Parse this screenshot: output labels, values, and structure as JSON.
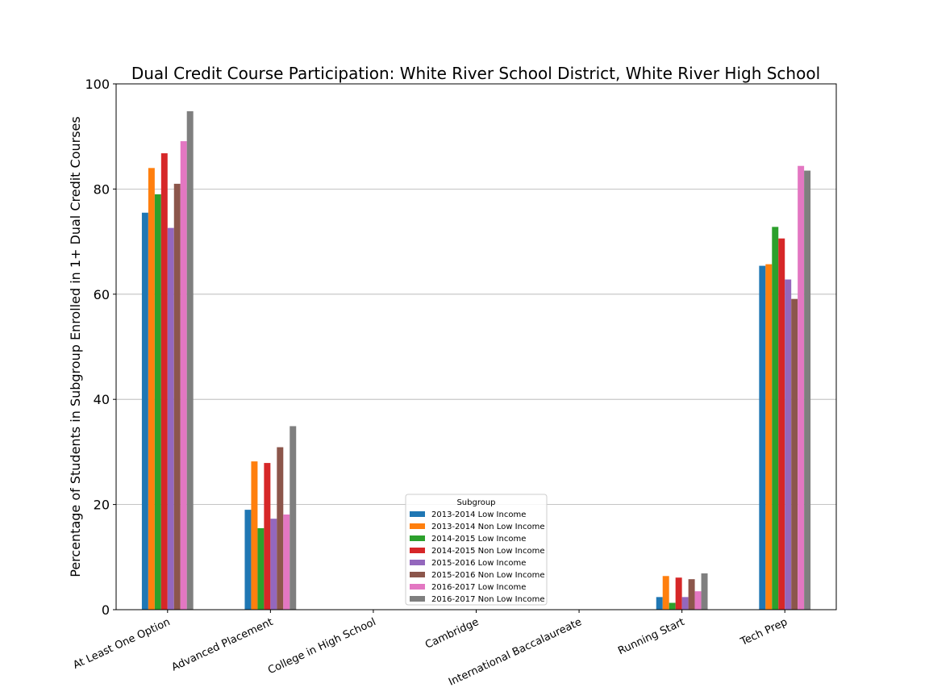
{
  "chart_data": {
    "type": "bar",
    "title": "Dual Credit Course Participation: White River School District, White River High School",
    "ylabel": "Percentage of Students in Subgroup Enrolled in 1+ Dual Credit Courses",
    "xlabel": "",
    "ylim": [
      0,
      100
    ],
    "yticks": [
      0,
      20,
      40,
      60,
      80,
      100
    ],
    "grid": "horizontal",
    "categories": [
      "At Least One Option",
      "Advanced Placement",
      "College in High School",
      "Cambridge",
      "International Baccalaureate",
      "Running Start",
      "Tech Prep"
    ],
    "legend": {
      "title": "Subgroup",
      "placement": "bottom-center"
    },
    "series": [
      {
        "name": "2013-2014 Low Income",
        "color": "#1f77b4",
        "values": [
          75.5,
          19.0,
          0,
          0,
          0,
          2.4,
          65.4
        ]
      },
      {
        "name": "2013-2014 Non Low Income",
        "color": "#ff7f0e",
        "values": [
          84.0,
          28.2,
          0,
          0,
          0,
          6.4,
          65.7
        ]
      },
      {
        "name": "2014-2015 Low Income",
        "color": "#2ca02c",
        "values": [
          79.0,
          15.5,
          0,
          0,
          0,
          1.3,
          72.8
        ]
      },
      {
        "name": "2014-2015 Non Low Income",
        "color": "#d62728",
        "values": [
          86.8,
          27.9,
          0,
          0,
          0,
          6.1,
          70.6
        ]
      },
      {
        "name": "2015-2016 Low Income",
        "color": "#9467bd",
        "values": [
          72.6,
          17.3,
          0,
          0,
          0,
          2.4,
          62.8
        ]
      },
      {
        "name": "2015-2016 Non Low Income",
        "color": "#8c564b",
        "values": [
          81.0,
          30.9,
          0,
          0,
          0,
          5.8,
          59.1
        ]
      },
      {
        "name": "2016-2017 Low Income",
        "color": "#e377c2",
        "values": [
          89.1,
          18.1,
          0,
          0,
          0,
          3.5,
          84.4
        ]
      },
      {
        "name": "2016-2017 Non Low Income",
        "color": "#7f7f7f",
        "values": [
          94.8,
          34.9,
          0,
          0,
          0,
          6.9,
          83.5
        ]
      }
    ]
  }
}
